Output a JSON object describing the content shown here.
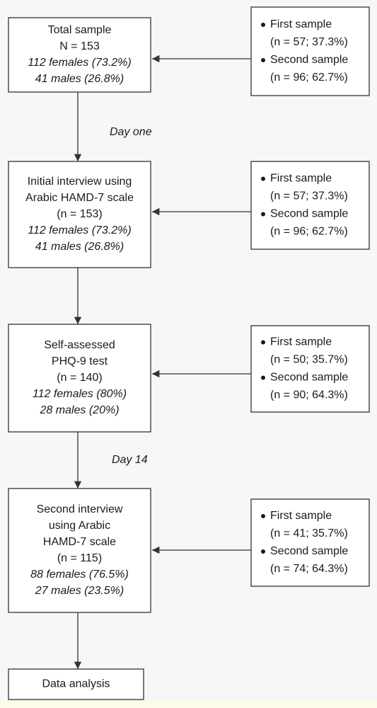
{
  "nodes": [
    {
      "lines": [
        "Total sample",
        "N = 153"
      ],
      "details": [
        "112 females (73.2%)",
        "41 males (26.8%)"
      ]
    },
    {
      "lines": [
        "Initial interview using",
        "Arabic HAMD-7 scale",
        "(n = 153)"
      ],
      "details": [
        "112 females (73.2%)",
        "41 males (26.8%)"
      ]
    },
    {
      "lines": [
        "Self-assessed",
        "PHQ-9 test",
        "(n = 140)"
      ],
      "details": [
        "112 females (80%)",
        "28 males (20%)"
      ]
    },
    {
      "lines": [
        "Second interview",
        "using Arabic",
        "HAMD-7 scale",
        "(n = 115)"
      ],
      "details": [
        "88 females (76.5%)",
        "27 males (23.5%)"
      ]
    },
    {
      "lines": [
        "Data analysis"
      ],
      "details": []
    }
  ],
  "samples": [
    {
      "items": [
        {
          "label": "First sample",
          "value": "(n = 57; 37.3%)"
        },
        {
          "label": "Second sample",
          "value": "(n = 96; 62.7%)"
        }
      ]
    },
    {
      "items": [
        {
          "label": "First sample",
          "value": "(n = 57; 37.3%)"
        },
        {
          "label": "Second sample",
          "value": "(n = 96; 62.7%)"
        }
      ]
    },
    {
      "items": [
        {
          "label": "First sample",
          "value": "(n = 50; 35.7%)"
        },
        {
          "label": "Second sample",
          "value": "(n = 90; 64.3%)"
        }
      ]
    },
    {
      "items": [
        {
          "label": "First sample",
          "value": "(n = 41; 35.7%)"
        },
        {
          "label": "Second sample",
          "value": "(n = 74; 64.3%)"
        }
      ]
    }
  ],
  "labels": [
    "Day one",
    "Day 14"
  ]
}
